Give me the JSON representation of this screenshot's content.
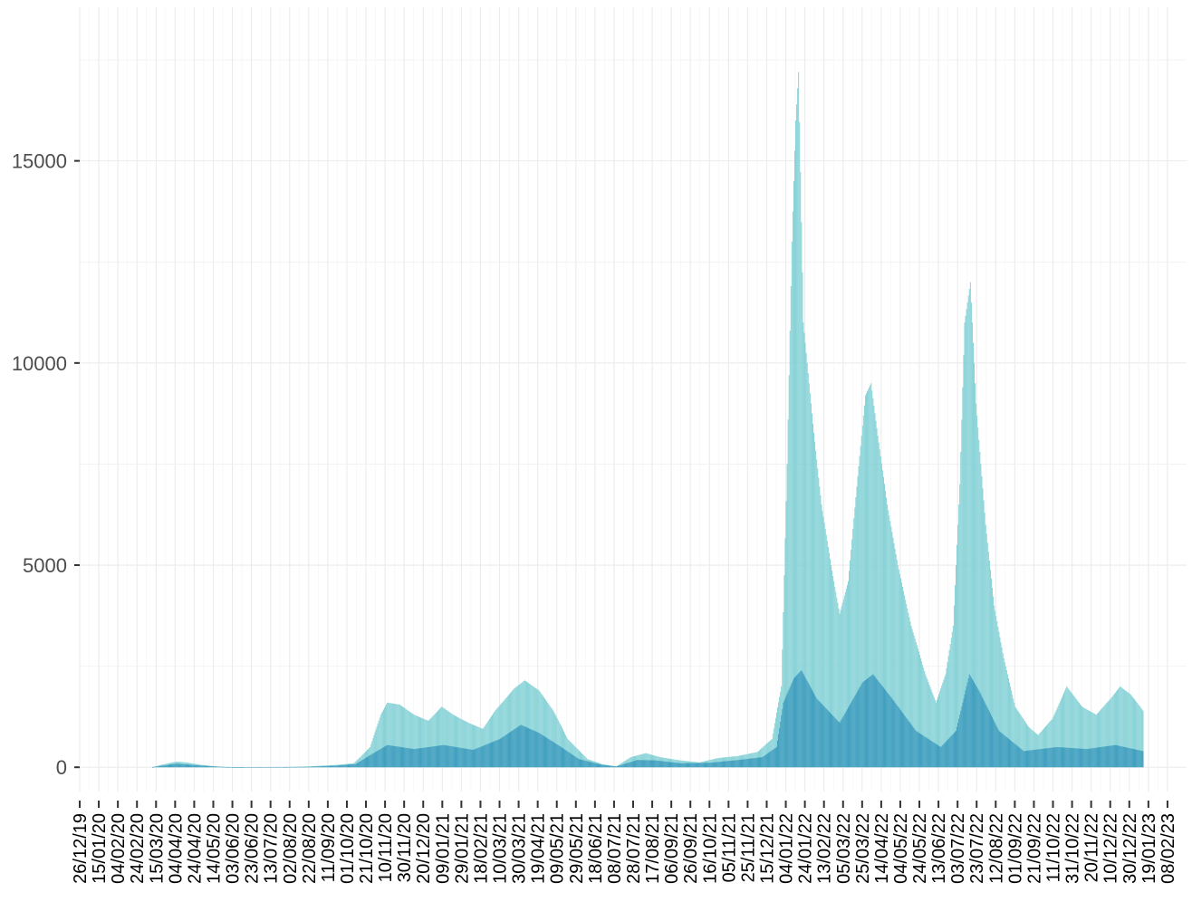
{
  "chart_data": {
    "type": "bar",
    "title": "",
    "xlabel": "",
    "ylabel": "",
    "grid": true,
    "legend": "none",
    "x_range": [
      "2019-12-26",
      "2023-02-28"
    ],
    "ylim": [
      -600,
      18800
    ],
    "y_ticks": [
      0,
      5000,
      10000,
      15000
    ],
    "y_tick_labels": [
      "0",
      "5000",
      "10000",
      "15000"
    ],
    "x_tick_labels": [
      "26/12/19",
      "15/01/20",
      "04/02/20",
      "24/02/20",
      "15/03/20",
      "04/04/20",
      "24/04/20",
      "14/05/20",
      "03/06/20",
      "23/06/20",
      "13/07/20",
      "02/08/20",
      "22/08/20",
      "11/09/20",
      "01/10/20",
      "21/10/20",
      "10/11/20",
      "30/11/20",
      "20/12/20",
      "09/01/21",
      "29/01/21",
      "18/02/21",
      "10/03/21",
      "30/03/21",
      "19/04/21",
      "09/05/21",
      "29/05/21",
      "18/06/21",
      "08/07/21",
      "28/07/21",
      "17/08/21",
      "06/09/21",
      "26/09/21",
      "16/10/21",
      "05/11/21",
      "25/11/21",
      "15/12/21",
      "04/01/22",
      "24/01/22",
      "13/02/22",
      "05/03/22",
      "25/03/22",
      "14/04/22",
      "04/05/22",
      "24/05/22",
      "13/06/22",
      "03/07/22",
      "23/07/22",
      "12/08/22",
      "01/09/22",
      "21/09/22",
      "11/10/22",
      "31/10/22",
      "20/11/22",
      "10/12/22",
      "30/12/22",
      "19/01/23",
      "08/02/23"
    ],
    "series": [
      {
        "color": "#7ecfd4",
        "points": [
          [
            "2020-03-10",
            0
          ],
          [
            "2020-03-20",
            60
          ],
          [
            "2020-04-05",
            140
          ],
          [
            "2020-04-15",
            120
          ],
          [
            "2020-05-01",
            60
          ],
          [
            "2020-05-20",
            10
          ],
          [
            "2020-06-15",
            0
          ],
          [
            "2020-07-25",
            0
          ],
          [
            "2020-08-20",
            20
          ],
          [
            "2020-09-20",
            60
          ],
          [
            "2020-10-08",
            100
          ],
          [
            "2020-10-25",
            500
          ],
          [
            "2020-11-05",
            1300
          ],
          [
            "2020-11-12",
            1600
          ],
          [
            "2020-11-25",
            1550
          ],
          [
            "2020-12-10",
            1300
          ],
          [
            "2020-12-25",
            1150
          ],
          [
            "2021-01-08",
            1500
          ],
          [
            "2021-01-20",
            1300
          ],
          [
            "2021-02-05",
            1100
          ],
          [
            "2021-02-20",
            950
          ],
          [
            "2021-03-05",
            1400
          ],
          [
            "2021-03-25",
            1950
          ],
          [
            "2021-04-05",
            2150
          ],
          [
            "2021-04-20",
            1900
          ],
          [
            "2021-05-05",
            1400
          ],
          [
            "2021-05-20",
            700
          ],
          [
            "2021-06-10",
            200
          ],
          [
            "2021-06-25",
            80
          ],
          [
            "2021-07-10",
            20
          ],
          [
            "2021-07-25",
            250
          ],
          [
            "2021-08-10",
            350
          ],
          [
            "2021-08-25",
            250
          ],
          [
            "2021-09-15",
            170
          ],
          [
            "2021-10-05",
            120
          ],
          [
            "2021-10-25",
            230
          ],
          [
            "2021-11-15",
            280
          ],
          [
            "2021-12-05",
            380
          ],
          [
            "2021-12-20",
            700
          ],
          [
            "2021-12-30",
            2000
          ],
          [
            "2022-01-05",
            7500
          ],
          [
            "2022-01-10",
            13000
          ],
          [
            "2022-01-14",
            16000
          ],
          [
            "2022-01-17",
            17200
          ],
          [
            "2022-01-22",
            11000
          ],
          [
            "2022-02-01",
            8500
          ],
          [
            "2022-02-10",
            6500
          ],
          [
            "2022-02-20",
            5000
          ],
          [
            "2022-03-01",
            3800
          ],
          [
            "2022-03-10",
            4600
          ],
          [
            "2022-03-20",
            7200
          ],
          [
            "2022-03-28",
            9200
          ],
          [
            "2022-04-03",
            9500
          ],
          [
            "2022-04-10",
            8200
          ],
          [
            "2022-04-20",
            6500
          ],
          [
            "2022-05-01",
            5000
          ],
          [
            "2022-05-15",
            3500
          ],
          [
            "2022-05-30",
            2300
          ],
          [
            "2022-06-10",
            1600
          ],
          [
            "2022-06-20",
            2300
          ],
          [
            "2022-06-28",
            3500
          ],
          [
            "2022-07-05",
            7000
          ],
          [
            "2022-07-10",
            11000
          ],
          [
            "2022-07-16",
            12000
          ],
          [
            "2022-07-22",
            9000
          ],
          [
            "2022-08-01",
            6000
          ],
          [
            "2022-08-10",
            4000
          ],
          [
            "2022-08-20",
            2700
          ],
          [
            "2022-09-01",
            1500
          ],
          [
            "2022-09-15",
            1000
          ],
          [
            "2022-09-25",
            800
          ],
          [
            "2022-10-10",
            1200
          ],
          [
            "2022-10-25",
            2000
          ],
          [
            "2022-11-10",
            1500
          ],
          [
            "2022-11-25",
            1300
          ],
          [
            "2022-12-10",
            1700
          ],
          [
            "2022-12-20",
            2000
          ],
          [
            "2022-12-31",
            1800
          ],
          [
            "2023-01-10",
            1500
          ],
          [
            "2023-01-13",
            1400
          ]
        ]
      },
      {
        "color": "#3b9bbd",
        "points": [
          [
            "2020-03-10",
            0
          ],
          [
            "2020-04-05",
            90
          ],
          [
            "2020-05-01",
            40
          ],
          [
            "2020-06-01",
            0
          ],
          [
            "2020-08-20",
            10
          ],
          [
            "2020-09-20",
            40
          ],
          [
            "2020-10-10",
            80
          ],
          [
            "2020-10-25",
            300
          ],
          [
            "2020-11-12",
            550
          ],
          [
            "2020-12-10",
            450
          ],
          [
            "2021-01-10",
            550
          ],
          [
            "2021-02-10",
            430
          ],
          [
            "2021-03-10",
            700
          ],
          [
            "2021-04-01",
            1050
          ],
          [
            "2021-04-20",
            850
          ],
          [
            "2021-05-10",
            550
          ],
          [
            "2021-06-01",
            200
          ],
          [
            "2021-06-25",
            60
          ],
          [
            "2021-07-10",
            20
          ],
          [
            "2021-08-01",
            180
          ],
          [
            "2021-08-20",
            170
          ],
          [
            "2021-09-15",
            100
          ],
          [
            "2021-10-15",
            110
          ],
          [
            "2021-11-15",
            180
          ],
          [
            "2021-12-10",
            250
          ],
          [
            "2021-12-25",
            500
          ],
          [
            "2022-01-01",
            1600
          ],
          [
            "2022-01-12",
            2200
          ],
          [
            "2022-01-20",
            2400
          ],
          [
            "2022-02-05",
            1700
          ],
          [
            "2022-03-01",
            1100
          ],
          [
            "2022-03-25",
            2100
          ],
          [
            "2022-04-05",
            2300
          ],
          [
            "2022-04-25",
            1700
          ],
          [
            "2022-05-20",
            900
          ],
          [
            "2022-06-15",
            500
          ],
          [
            "2022-07-01",
            900
          ],
          [
            "2022-07-15",
            2300
          ],
          [
            "2022-07-25",
            1900
          ],
          [
            "2022-08-15",
            900
          ],
          [
            "2022-09-10",
            400
          ],
          [
            "2022-10-15",
            500
          ],
          [
            "2022-11-15",
            450
          ],
          [
            "2022-12-15",
            550
          ],
          [
            "2023-01-13",
            400
          ]
        ]
      }
    ]
  }
}
